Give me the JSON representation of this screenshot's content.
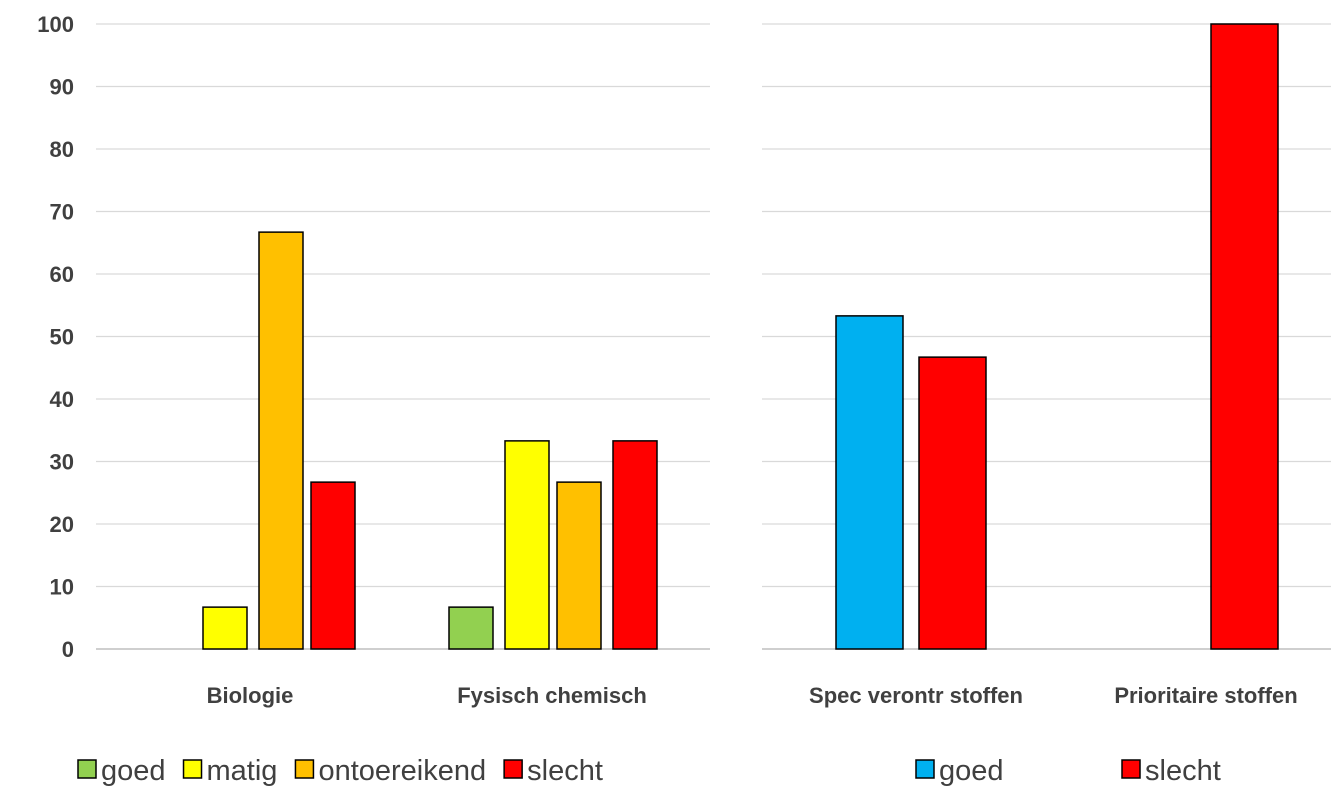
{
  "chart_data": [
    {
      "type": "bar",
      "categories": [
        "Biologie",
        "Fysisch chemisch"
      ],
      "series": [
        {
          "name": "goed",
          "color": "#92d050",
          "values": [
            0,
            6.7
          ]
        },
        {
          "name": "matig",
          "color": "#ffff00",
          "values": [
            6.7,
            33.3
          ]
        },
        {
          "name": "ontoereikend",
          "color": "#ffc000",
          "values": [
            66.7,
            26.7
          ]
        },
        {
          "name": "slecht",
          "color": "#ff0000",
          "values": [
            26.7,
            33.3
          ]
        }
      ],
      "ylim": [
        0,
        100
      ],
      "yticks": [
        "0",
        "10",
        "20",
        "30",
        "40",
        "50",
        "60",
        "70",
        "80",
        "90",
        "100"
      ],
      "grid": true,
      "legend": "bottom"
    },
    {
      "type": "bar",
      "categories": [
        "Spec verontr stoffen",
        "Prioritaire stoffen"
      ],
      "series": [
        {
          "name": "goed",
          "color": "#00b0f0",
          "values": [
            53.3,
            0
          ]
        },
        {
          "name": "slecht",
          "color": "#ff0000",
          "values": [
            46.7,
            100
          ]
        }
      ],
      "ylim": [
        0,
        100
      ],
      "grid": true,
      "legend": "bottom"
    }
  ]
}
